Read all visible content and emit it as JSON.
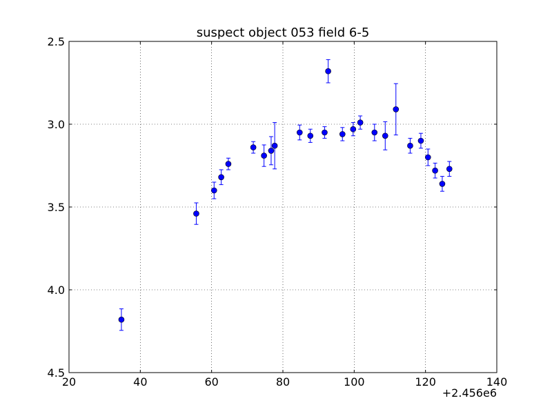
{
  "chart_data": {
    "type": "scatter",
    "title": "suspect object 053 field 6-5",
    "xlabel": "",
    "ylabel": "",
    "x_offset_label": "+2.456e6",
    "xlim": [
      20,
      140
    ],
    "ylim": [
      2.5,
      4.5
    ],
    "y_inverted": true,
    "x_ticks": [
      20,
      40,
      60,
      80,
      100,
      120,
      140
    ],
    "x_tick_labels": [
      "20",
      "40",
      "60",
      "80",
      "100",
      "120",
      "140"
    ],
    "y_ticks": [
      2.5,
      3.0,
      3.5,
      4.0,
      4.5
    ],
    "y_tick_labels": [
      "2.5",
      "3.0",
      "3.5",
      "4.0",
      "4.5"
    ],
    "grid": true,
    "marker_color": "#0000ff",
    "points": [
      {
        "x": 34.7,
        "y": 4.18,
        "err": 0.065
      },
      {
        "x": 55.7,
        "y": 3.54,
        "err": 0.065
      },
      {
        "x": 60.7,
        "y": 3.4,
        "err": 0.05
      },
      {
        "x": 62.7,
        "y": 3.32,
        "err": 0.045
      },
      {
        "x": 64.7,
        "y": 3.24,
        "err": 0.035
      },
      {
        "x": 71.7,
        "y": 3.14,
        "err": 0.035
      },
      {
        "x": 74.7,
        "y": 3.19,
        "err": 0.065
      },
      {
        "x": 76.7,
        "y": 3.16,
        "err": 0.085
      },
      {
        "x": 77.7,
        "y": 3.13,
        "err": 0.14
      },
      {
        "x": 84.7,
        "y": 3.05,
        "err": 0.045
      },
      {
        "x": 87.7,
        "y": 3.07,
        "err": 0.04
      },
      {
        "x": 91.7,
        "y": 3.05,
        "err": 0.035
      },
      {
        "x": 92.7,
        "y": 2.68,
        "err": 0.07
      },
      {
        "x": 96.7,
        "y": 3.06,
        "err": 0.04
      },
      {
        "x": 99.7,
        "y": 3.03,
        "err": 0.04
      },
      {
        "x": 101.7,
        "y": 2.99,
        "err": 0.04
      },
      {
        "x": 105.7,
        "y": 3.05,
        "err": 0.05
      },
      {
        "x": 108.7,
        "y": 3.07,
        "err": 0.085
      },
      {
        "x": 111.7,
        "y": 2.91,
        "err": 0.155
      },
      {
        "x": 115.7,
        "y": 3.13,
        "err": 0.045
      },
      {
        "x": 118.7,
        "y": 3.1,
        "err": 0.045
      },
      {
        "x": 120.7,
        "y": 3.2,
        "err": 0.05
      },
      {
        "x": 122.7,
        "y": 3.28,
        "err": 0.045
      },
      {
        "x": 124.7,
        "y": 3.36,
        "err": 0.045
      },
      {
        "x": 126.7,
        "y": 3.27,
        "err": 0.045
      }
    ]
  }
}
